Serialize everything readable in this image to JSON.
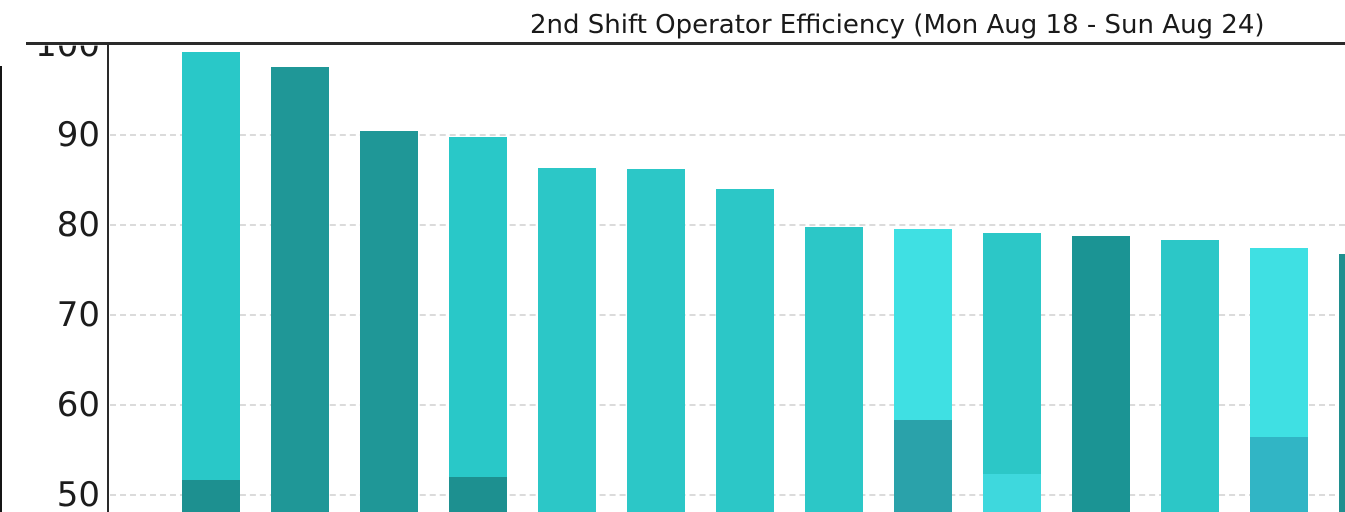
{
  "chart_data": {
    "type": "bar",
    "title": "2nd Shift Operator Efficiency (Mon Aug 18 - Sun Aug 24)",
    "xlabel": "",
    "ylabel": "",
    "y_ticks": [
      100,
      90,
      80,
      70,
      60,
      50
    ],
    "ylim_visible": [
      48,
      100
    ],
    "grid": "horizontal dashed gridlines",
    "legend": "none visible",
    "x_tick_labels_visible": false,
    "note": "bottom of chart cropped; rightmost bar partially visible",
    "bars": [
      {
        "value": 99.2,
        "color": "#29c8c8",
        "lower_segment": {
          "value": 51.7,
          "color": "#1d9090"
        }
      },
      {
        "value": 97.6,
        "color": "#1f9797"
      },
      {
        "value": 90.5,
        "color": "#1f9797"
      },
      {
        "value": 89.8,
        "color": "#29c8c8",
        "lower_segment": {
          "value": 52.0,
          "color": "#1d9090"
        }
      },
      {
        "value": 86.3,
        "color": "#2cc7c7"
      },
      {
        "value": 86.2,
        "color": "#2cc7c7"
      },
      {
        "value": 84.0,
        "color": "#2cc7c7"
      },
      {
        "value": 79.8,
        "color": "#2cc7c7"
      },
      {
        "value": 79.6,
        "color": "#3fe0e3",
        "lower_segment": {
          "value": 58.3,
          "color": "#2aa2aa"
        }
      },
      {
        "value": 79.1,
        "color": "#2cc7c7",
        "lower_segment": {
          "value": 52.3,
          "color": "#3ed8dd"
        }
      },
      {
        "value": 78.8,
        "color": "#1b9494"
      },
      {
        "value": 78.3,
        "color": "#2cc7c7"
      },
      {
        "value": 77.5,
        "color": "#3fe0e3",
        "lower_segment": {
          "value": 56.4,
          "color": "#31b5c5"
        }
      },
      {
        "value": 76.8,
        "color": "#1f8f8f"
      }
    ]
  }
}
